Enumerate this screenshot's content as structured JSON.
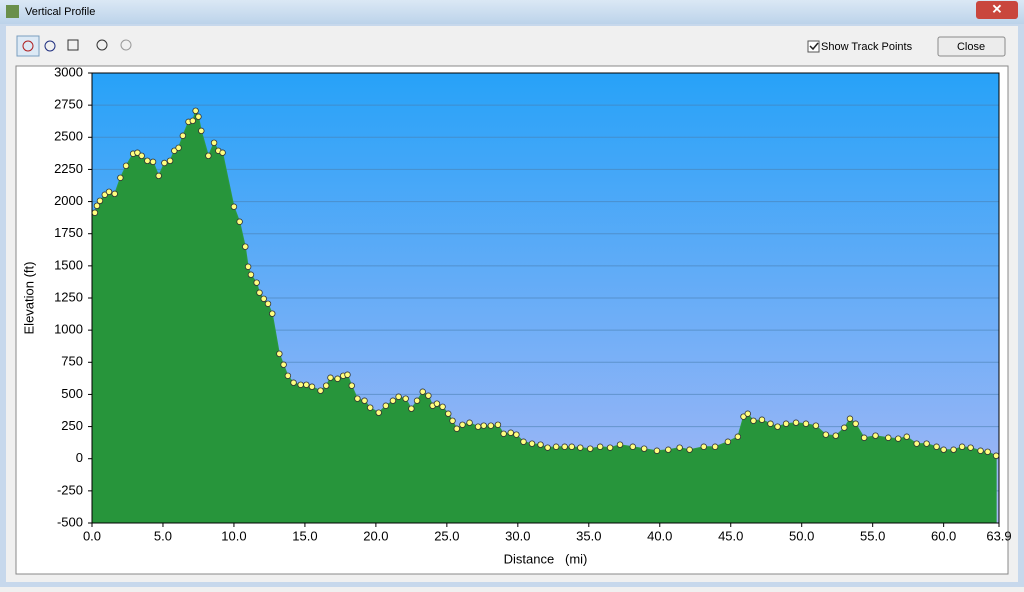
{
  "window": {
    "title": "Vertical Profile",
    "checkbox_label": "Show Track Points",
    "close_button": "Close"
  },
  "chart_data": {
    "type": "area",
    "x_label": "Distance   (mi)",
    "y_label": "Elevation (ft)",
    "xlim": [
      0,
      63.9
    ],
    "ylim": [
      -500,
      3000
    ],
    "xticks": [
      {
        "value": 0,
        "label": "0.0"
      },
      {
        "value": 5,
        "label": "5.0"
      },
      {
        "value": 10,
        "label": "10.0"
      },
      {
        "value": 15,
        "label": "15.0"
      },
      {
        "value": 20,
        "label": "20.0"
      },
      {
        "value": 25,
        "label": "25.0"
      },
      {
        "value": 30,
        "label": "30.0"
      },
      {
        "value": 35,
        "label": "35.0"
      },
      {
        "value": 40,
        "label": "40.0"
      },
      {
        "value": 45,
        "label": "45.0"
      },
      {
        "value": 50,
        "label": "50.0"
      },
      {
        "value": 55,
        "label": "55.0"
      },
      {
        "value": 60,
        "label": "60.0"
      },
      63.9
    ],
    "yticks": [
      -500,
      -250,
      0,
      250,
      500,
      750,
      1000,
      1250,
      1500,
      1750,
      2000,
      2250,
      2500,
      2750,
      3000
    ],
    "grid": true,
    "color": "#2d9a3f",
    "marker_color": "#ffff80",
    "x": [
      0.2,
      0.35,
      0.56,
      0.9,
      1.2,
      1.6,
      2.0,
      2.4,
      2.9,
      3.2,
      3.5,
      3.9,
      4.3,
      4.7,
      5.1,
      5.5,
      5.8,
      6.1,
      6.4,
      6.8,
      7.1,
      7.3,
      7.5,
      7.7,
      8.2,
      8.6,
      8.9,
      9.2,
      10.0,
      10.4,
      10.8,
      11.0,
      11.2,
      11.6,
      11.8,
      12.1,
      12.4,
      12.7,
      13.2,
      13.5,
      13.8,
      14.2,
      14.7,
      15.1,
      15.5,
      16.1,
      16.5,
      16.8,
      17.3,
      17.7,
      18.0,
      18.3,
      18.7,
      19.2,
      19.6,
      20.2,
      20.7,
      21.2,
      21.6,
      22.1,
      22.5,
      22.9,
      23.3,
      23.7,
      24.0,
      24.3,
      24.7,
      25.1,
      25.4,
      25.7,
      26.1,
      26.6,
      27.2,
      27.6,
      28.1,
      28.6,
      29.0,
      29.5,
      29.9,
      30.4,
      31.0,
      31.6,
      32.1,
      32.7,
      33.3,
      33.8,
      34.4,
      35.1,
      35.8,
      36.5,
      37.2,
      38.1,
      38.9,
      39.8,
      40.6,
      41.4,
      42.1,
      43.1,
      43.9,
      44.8,
      45.5,
      45.9,
      46.2,
      46.6,
      47.2,
      47.8,
      48.3,
      48.9,
      49.6,
      50.3,
      51.0,
      51.7,
      52.4,
      53.0,
      53.4,
      53.8,
      54.4,
      55.2,
      56.1,
      56.8,
      57.4,
      58.1,
      58.8,
      59.5,
      60.0,
      60.7,
      61.3,
      61.9,
      62.6,
      63.1,
      63.7
    ],
    "values": [
      1913,
      1967,
      2006,
      2053,
      2076,
      2060,
      2185,
      2278,
      2372,
      2380,
      2356,
      2317,
      2309,
      2200,
      2300,
      2317,
      2395,
      2418,
      2512,
      2620,
      2628,
      2706,
      2660,
      2550,
      2356,
      2457,
      2395,
      2380,
      1960,
      1843,
      1649,
      1493,
      1431,
      1369,
      1291,
      1244,
      1205,
      1128,
      816,
      731,
      645,
      591,
      575,
      575,
      560,
      529,
      568,
      630,
      622,
      645,
      653,
      568,
      467,
      451,
      397,
      358,
      412,
      451,
      482,
      467,
      389,
      451,
      521,
      490,
      412,
      428,
      404,
      350,
      295,
      233,
      264,
      280,
      249,
      257,
      257,
      264,
      194,
      202,
      187,
      132,
      117,
      109,
      86,
      93,
      93,
      93,
      86,
      78,
      93,
      86,
      109,
      93,
      78,
      62,
      70,
      86,
      70,
      93,
      93,
      132,
      171,
      327,
      350,
      295,
      303,
      272,
      249,
      272,
      280,
      272,
      257,
      187,
      179,
      241,
      311,
      272,
      163,
      179,
      163,
      156,
      171,
      117,
      117,
      93,
      70,
      70,
      93,
      86,
      62,
      54,
      23
    ]
  }
}
